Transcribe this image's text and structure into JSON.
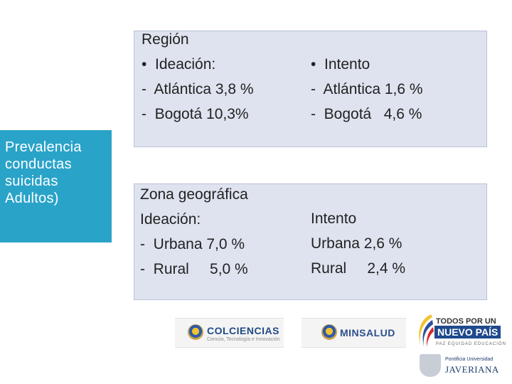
{
  "sidebar": {
    "lines": [
      "Prevalencia",
      "conductas",
      "suicidas",
      "Adultos)"
    ],
    "background": "#2aa3c9"
  },
  "region_panel": {
    "left": [
      "Región",
      "•  Ideación:",
      "-  Atlántica 3,8 %",
      "-  Bogotá 10,3%"
    ],
    "right": [
      "•  Intento",
      "-  Atlántica 1,6 %",
      "-  Bogotá   4,6 %"
    ],
    "background": "#dfe3ef"
  },
  "zona_panel": {
    "left": [
      "Zona geográfica",
      "Ideación:",
      "-  Urbana 7,0 %",
      "-  Rural     5,0 %"
    ],
    "right": [
      "Intento",
      "Urbana 2,6 %",
      "Rural     2,4 %"
    ]
  },
  "logos": {
    "colciencias": {
      "name": "COLCIENCIAS",
      "tagline": "Ciencia, Tecnología e Innovación"
    },
    "minsalud": {
      "name": "MINSALUD"
    },
    "todos": {
      "line1": "TODOS POR UN",
      "line2": "NUEVO PAÍS",
      "line3": "PAZ  EQUIDAD  EDUCACIÓN"
    },
    "javeriana": {
      "line1": "Pontificia Universidad",
      "line2": "JAVERIANA"
    }
  }
}
